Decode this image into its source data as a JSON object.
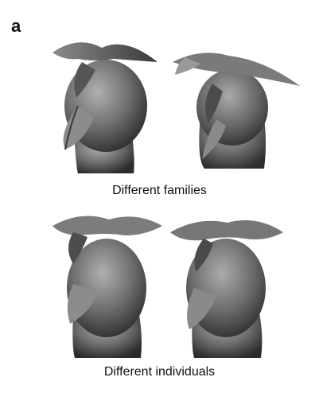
{
  "figure": {
    "panel_label": "a",
    "captions": {
      "top": "Different families",
      "bottom": "Different individuals"
    },
    "object_icon": "greeble-3d-head",
    "colors": {
      "shade_light": "#a9a9a9",
      "shade_mid": "#707070",
      "shade_dark": "#2e2e2e",
      "text": "#111111"
    }
  }
}
